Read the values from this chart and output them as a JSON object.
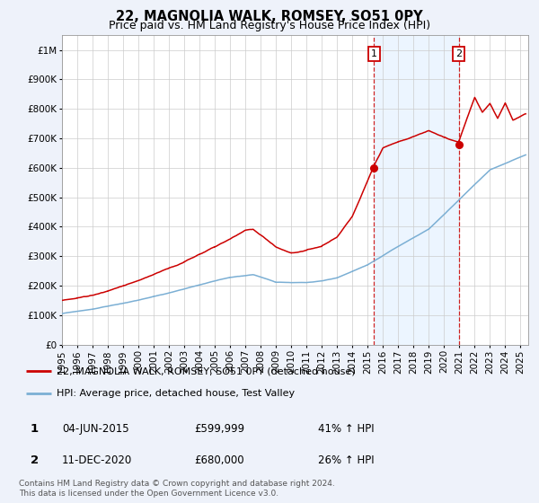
{
  "title": "22, MAGNOLIA WALK, ROMSEY, SO51 0PY",
  "subtitle": "Price paid vs. HM Land Registry's House Price Index (HPI)",
  "xlim": [
    1995.0,
    2025.5
  ],
  "ylim": [
    0,
    1050000
  ],
  "yticks": [
    0,
    100000,
    200000,
    300000,
    400000,
    500000,
    600000,
    700000,
    800000,
    900000,
    1000000
  ],
  "ytick_labels": [
    "£0",
    "£100K",
    "£200K",
    "£300K",
    "£400K",
    "£500K",
    "£600K",
    "£700K",
    "£800K",
    "£900K",
    "£1M"
  ],
  "xticks": [
    1995,
    1996,
    1997,
    1998,
    1999,
    2000,
    2001,
    2002,
    2003,
    2004,
    2005,
    2006,
    2007,
    2008,
    2009,
    2010,
    2011,
    2012,
    2013,
    2014,
    2015,
    2016,
    2017,
    2018,
    2019,
    2020,
    2021,
    2022,
    2023,
    2024,
    2025
  ],
  "red_line_color": "#cc0000",
  "blue_line_color": "#7bafd4",
  "point1_x": 2015.42,
  "point1_y": 599999,
  "point1_label": "1",
  "point2_x": 2020.95,
  "point2_y": 680000,
  "point2_label": "2",
  "vline_color": "#cc0000",
  "shade_color": "#ddeeff",
  "legend_red_label": "22, MAGNOLIA WALK, ROMSEY, SO51 0PY (detached house)",
  "legend_blue_label": "HPI: Average price, detached house, Test Valley",
  "table_row1": [
    "1",
    "04-JUN-2015",
    "£599,999",
    "41% ↑ HPI"
  ],
  "table_row2": [
    "2",
    "11-DEC-2020",
    "£680,000",
    "26% ↑ HPI"
  ],
  "footer": "Contains HM Land Registry data © Crown copyright and database right 2024.\nThis data is licensed under the Open Government Licence v3.0.",
  "bg_color": "#eef2fa",
  "plot_bg": "#ffffff",
  "title_fontsize": 10.5,
  "subtitle_fontsize": 9,
  "axis_fontsize": 7.5,
  "legend_fontsize": 8,
  "table_fontsize": 8.5,
  "footer_fontsize": 6.5
}
